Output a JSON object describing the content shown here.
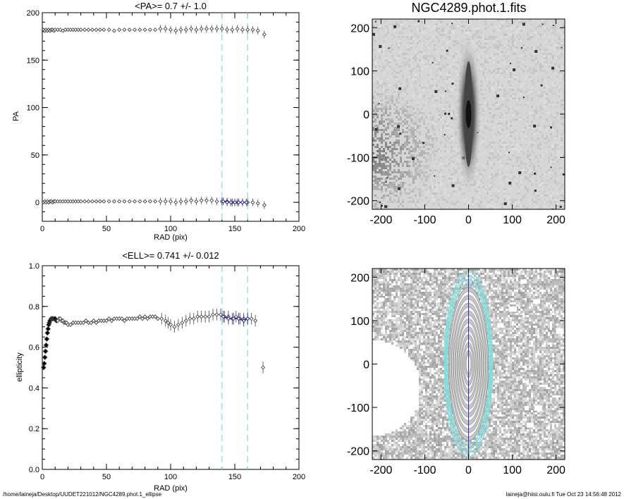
{
  "chart_data": [
    {
      "id": "pa",
      "type": "scatter",
      "title": "<PA>=   0.7 +/-   1.0",
      "xlabel": "RAD (pix)",
      "ylabel": "PA",
      "xlim": [
        0,
        200
      ],
      "ylim": [
        -20,
        200
      ],
      "xticks": [
        0,
        50,
        100,
        150,
        200
      ],
      "yticks": [
        0,
        50,
        100,
        150,
        200
      ],
      "grid": false,
      "vlines": [
        140,
        160
      ],
      "series": [
        {
          "points": [
            [
              1,
              182
            ],
            [
              2,
              181
            ],
            [
              3,
              182
            ],
            [
              4,
              181
            ],
            [
              5,
              182
            ],
            [
              6,
              181
            ],
            [
              7,
              182
            ],
            [
              8,
              182
            ],
            [
              9,
              181
            ],
            [
              10,
              182
            ],
            [
              12,
              182
            ],
            [
              14,
              182
            ],
            [
              16,
              181
            ],
            [
              18,
              182
            ],
            [
              20,
              182
            ],
            [
              22,
              182
            ],
            [
              24,
              182
            ],
            [
              26,
              182
            ],
            [
              28,
              182
            ],
            [
              30,
              182
            ],
            [
              33,
              182
            ],
            [
              36,
              182
            ],
            [
              39,
              182
            ],
            [
              42,
              182
            ],
            [
              45,
              182
            ],
            [
              48,
              182
            ],
            [
              52,
              182
            ],
            [
              56,
              181
            ],
            [
              60,
              182
            ],
            [
              64,
              182
            ],
            [
              68,
              182
            ],
            [
              72,
              182
            ],
            [
              76,
              182
            ],
            [
              80,
              182
            ],
            [
              84,
              182
            ],
            [
              88,
              182
            ],
            [
              92,
              183
            ],
            [
              96,
              183
            ],
            [
              100,
              182
            ],
            [
              104,
              181
            ],
            [
              108,
              182
            ],
            [
              112,
              182
            ],
            [
              116,
              183
            ],
            [
              120,
              182
            ],
            [
              124,
              183
            ],
            [
              128,
              183
            ],
            [
              132,
              183
            ],
            [
              136,
              183
            ],
            [
              140,
              183
            ],
            [
              144,
              182
            ],
            [
              148,
              182
            ],
            [
              152,
              183
            ],
            [
              156,
              182
            ],
            [
              160,
              182
            ],
            [
              164,
              182
            ],
            [
              168,
              181
            ],
            [
              173,
              177
            ]
          ]
        },
        {
          "points": [
            [
              1,
              0
            ],
            [
              2,
              1
            ],
            [
              3,
              0
            ],
            [
              4,
              1
            ],
            [
              5,
              0
            ],
            [
              6,
              1
            ],
            [
              7,
              1
            ],
            [
              8,
              0
            ],
            [
              9,
              1
            ],
            [
              10,
              1
            ],
            [
              12,
              1
            ],
            [
              14,
              1
            ],
            [
              16,
              1
            ],
            [
              18,
              1
            ],
            [
              20,
              1
            ],
            [
              22,
              1
            ],
            [
              24,
              1
            ],
            [
              26,
              1
            ],
            [
              28,
              1
            ],
            [
              30,
              1
            ],
            [
              33,
              1
            ],
            [
              36,
              1
            ],
            [
              39,
              1
            ],
            [
              42,
              1
            ],
            [
              45,
              1
            ],
            [
              48,
              1
            ],
            [
              52,
              1
            ],
            [
              56,
              1
            ],
            [
              60,
              1
            ],
            [
              64,
              1
            ],
            [
              68,
              1
            ],
            [
              72,
              1
            ],
            [
              76,
              1
            ],
            [
              80,
              1
            ],
            [
              84,
              1
            ],
            [
              88,
              1
            ],
            [
              92,
              1
            ],
            [
              96,
              1
            ],
            [
              100,
              1
            ],
            [
              104,
              0
            ],
            [
              108,
              1
            ],
            [
              112,
              1
            ],
            [
              116,
              2
            ],
            [
              120,
              1
            ],
            [
              124,
              2
            ],
            [
              128,
              2
            ],
            [
              132,
              2
            ],
            [
              136,
              1
            ],
            [
              140,
              1
            ],
            [
              144,
              1
            ],
            [
              148,
              0
            ],
            [
              152,
              0
            ],
            [
              156,
              0
            ],
            [
              160,
              0
            ],
            [
              164,
              0
            ],
            [
              168,
              -1
            ],
            [
              173,
              -3
            ]
          ]
        },
        {
          "color": "#1a1aa0",
          "points": [
            [
              141,
              1
            ],
            [
              144,
              0
            ],
            [
              147,
              0
            ],
            [
              150,
              0
            ],
            [
              153,
              0
            ],
            [
              156,
              0
            ],
            [
              159,
              0
            ]
          ]
        }
      ]
    },
    {
      "id": "ell",
      "type": "scatter",
      "title": "<ELL>= 0.741 +/-  0.012",
      "xlabel": "RAD (pix)",
      "ylabel": "ellipticity",
      "xlim": [
        0,
        200
      ],
      "ylim": [
        0.0,
        1.0
      ],
      "xticks": [
        0,
        50,
        100,
        150,
        200
      ],
      "yticks": [
        "0.0",
        "0.2",
        "0.4",
        "0.6",
        "0.8",
        "1.0"
      ],
      "grid": false,
      "vlines": [
        140,
        160
      ],
      "series": [
        {
          "points": [
            [
              1,
              0.5
            ],
            [
              1.5,
              0.52
            ],
            [
              2,
              0.55
            ],
            [
              2.5,
              0.58
            ],
            [
              3,
              0.61
            ],
            [
              3.5,
              0.64
            ],
            [
              4,
              0.67
            ],
            [
              4.5,
              0.69
            ],
            [
              5,
              0.71
            ],
            [
              5.5,
              0.72
            ],
            [
              6,
              0.73
            ],
            [
              7,
              0.74
            ],
            [
              8,
              0.74
            ],
            [
              9,
              0.74
            ],
            [
              10,
              0.74
            ],
            [
              11,
              0.73
            ],
            [
              12,
              0.73
            ],
            [
              13,
              0.74
            ],
            [
              14,
              0.74
            ],
            [
              15,
              0.73
            ],
            [
              16,
              0.73
            ],
            [
              17,
              0.72
            ],
            [
              18,
              0.72
            ],
            [
              19,
              0.72
            ],
            [
              20,
              0.71
            ],
            [
              22,
              0.71
            ],
            [
              24,
              0.72
            ],
            [
              26,
              0.72
            ],
            [
              28,
              0.72
            ],
            [
              30,
              0.72
            ],
            [
              32,
              0.72
            ],
            [
              34,
              0.73
            ],
            [
              36,
              0.72
            ],
            [
              38,
              0.72
            ],
            [
              40,
              0.73
            ],
            [
              42,
              0.72
            ],
            [
              44,
              0.73
            ],
            [
              46,
              0.73
            ],
            [
              48,
              0.73
            ],
            [
              50,
              0.73
            ],
            [
              52,
              0.74
            ],
            [
              54,
              0.73
            ],
            [
              56,
              0.74
            ],
            [
              58,
              0.74
            ],
            [
              60,
              0.74
            ],
            [
              62,
              0.74
            ],
            [
              64,
              0.73
            ],
            [
              66,
              0.74
            ],
            [
              68,
              0.74
            ],
            [
              70,
              0.74
            ],
            [
              72,
              0.74
            ],
            [
              74,
              0.74
            ],
            [
              76,
              0.75
            ],
            [
              78,
              0.74
            ],
            [
              80,
              0.75
            ],
            [
              82,
              0.74
            ],
            [
              84,
              0.75
            ],
            [
              86,
              0.75
            ],
            [
              88,
              0.75
            ],
            [
              90,
              0.74
            ],
            [
              93,
              0.74
            ],
            [
              96,
              0.73
            ],
            [
              98,
              0.72
            ],
            [
              100,
              0.71
            ],
            [
              103,
              0.7
            ],
            [
              106,
              0.71
            ],
            [
              109,
              0.72
            ],
            [
              112,
              0.73
            ],
            [
              115,
              0.74
            ],
            [
              118,
              0.74
            ],
            [
              121,
              0.75
            ],
            [
              124,
              0.75
            ],
            [
              127,
              0.75
            ],
            [
              130,
              0.75
            ],
            [
              133,
              0.76
            ],
            [
              136,
              0.76
            ],
            [
              139,
              0.76
            ],
            [
              142,
              0.75
            ],
            [
              145,
              0.75
            ],
            [
              148,
              0.74
            ],
            [
              151,
              0.75
            ],
            [
              154,
              0.74
            ],
            [
              157,
              0.74
            ],
            [
              160,
              0.74
            ],
            [
              163,
              0.74
            ],
            [
              166,
              0.73
            ],
            [
              172,
              0.5
            ]
          ]
        },
        {
          "color": "#1a1aa0",
          "points": [
            [
              141,
              0.75
            ],
            [
              145,
              0.74
            ],
            [
              149,
              0.74
            ],
            [
              153,
              0.74
            ],
            [
              157,
              0.73
            ],
            [
              160,
              0.74
            ]
          ]
        }
      ]
    }
  ],
  "images": [
    {
      "id": "galaxy",
      "title": "NGC4289.phot.1.fits",
      "xlim": [
        -220,
        220
      ],
      "ylim": [
        -220,
        220
      ],
      "xticks": [
        "-200",
        "-100",
        "0",
        "100",
        "200"
      ],
      "yticks": [
        "-200",
        "-100",
        "0",
        "100",
        "200"
      ]
    },
    {
      "id": "residual",
      "title": "",
      "xlim": [
        -220,
        220
      ],
      "ylim": [
        -220,
        220
      ],
      "xticks": [
        "-200",
        "-100",
        "0",
        "100",
        "200"
      ],
      "yticks": [
        "-200",
        "-100",
        "0",
        "100",
        "200"
      ]
    }
  ],
  "colors": {
    "axis": "#000000",
    "cyan_line": "#7fdede",
    "blue_points": "#1a1aa0",
    "gray_points": "#444444"
  },
  "footer": {
    "left": "/home/laineja/Desktop/UUDET221012/NGC4289.phot.1_ellipse",
    "right": "laineja@hiisi.oulu.fi  Tue Oct 23 14:56:48 2012"
  }
}
